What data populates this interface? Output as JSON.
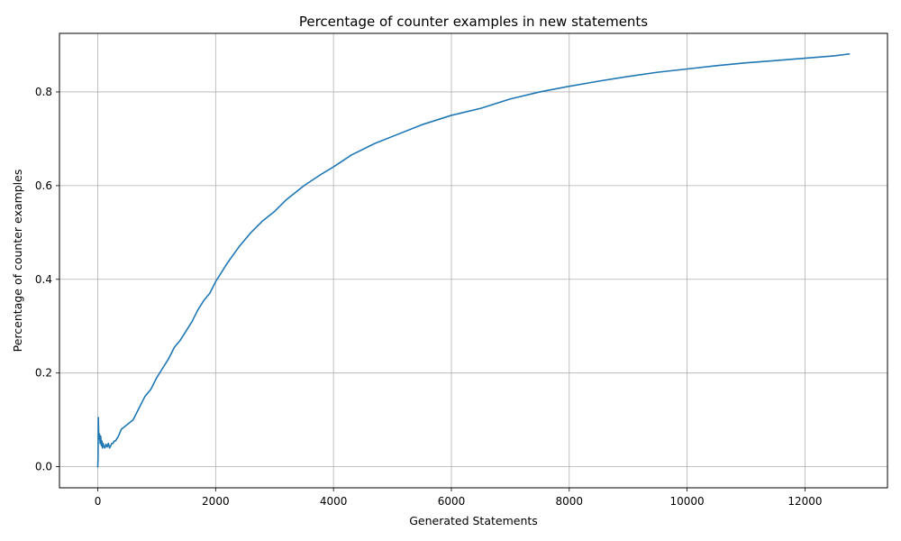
{
  "chart_data": {
    "type": "line",
    "title": "Percentage of counter examples in new statements",
    "xlabel": "Generated Statements",
    "ylabel": "Percentage of counter examples",
    "xlim": [
      -650,
      13400
    ],
    "ylim": [
      -0.045,
      0.925
    ],
    "xticks": [
      0,
      2000,
      4000,
      6000,
      8000,
      10000,
      12000
    ],
    "yticks": [
      0.0,
      0.2,
      0.4,
      0.6,
      0.8
    ],
    "xtick_labels": [
      "0",
      "2000",
      "4000",
      "6000",
      "8000",
      "10000",
      "12000"
    ],
    "ytick_labels": [
      "0.0",
      "0.2",
      "0.4",
      "0.6",
      "0.8"
    ],
    "grid": true,
    "line_color": "#1f77b4",
    "series": [
      {
        "x": [
          0,
          5,
          10,
          15,
          20,
          30,
          40,
          50,
          60,
          70,
          80,
          90,
          100,
          120,
          140,
          160,
          180,
          200,
          220,
          240,
          260,
          280,
          300,
          350,
          400,
          450,
          500,
          600,
          700,
          800,
          900,
          1000,
          1100,
          1200,
          1300,
          1400,
          1500,
          1600,
          1700,
          1800,
          1900,
          2000,
          2200,
          2400,
          2600,
          2800,
          3000,
          3200,
          3500,
          3800,
          4000,
          4300,
          4700,
          5000,
          5500,
          6000,
          6500,
          7000,
          7500,
          8000,
          8500,
          9000,
          9500,
          10000,
          10500,
          11000,
          11500,
          12000,
          12500,
          12750
        ],
        "y": [
          0.0,
          0.02,
          0.105,
          0.075,
          0.06,
          0.07,
          0.05,
          0.065,
          0.045,
          0.055,
          0.04,
          0.05,
          0.045,
          0.04,
          0.048,
          0.042,
          0.05,
          0.04,
          0.045,
          0.05,
          0.05,
          0.055,
          0.055,
          0.065,
          0.08,
          0.085,
          0.09,
          0.1,
          0.125,
          0.15,
          0.165,
          0.19,
          0.21,
          0.23,
          0.255,
          0.27,
          0.29,
          0.31,
          0.335,
          0.355,
          0.37,
          0.395,
          0.435,
          0.47,
          0.5,
          0.525,
          0.545,
          0.57,
          0.6,
          0.625,
          0.64,
          0.665,
          0.69,
          0.705,
          0.73,
          0.75,
          0.765,
          0.785,
          0.8,
          0.812,
          0.823,
          0.833,
          0.842,
          0.849,
          0.856,
          0.862,
          0.867,
          0.872,
          0.877,
          0.881
        ]
      }
    ]
  }
}
